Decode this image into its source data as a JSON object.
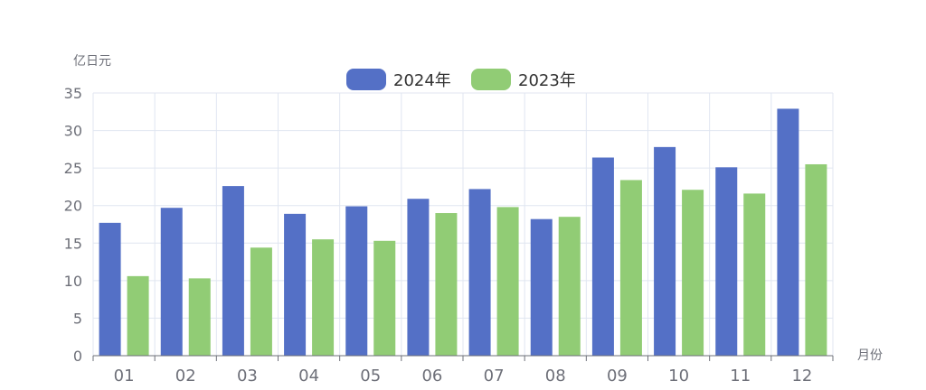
{
  "chart_data": {
    "type": "bar",
    "ylabel": "亿日元",
    "xlabel": "月份",
    "ylim": [
      0,
      35
    ],
    "yticks": [
      0,
      5,
      10,
      15,
      20,
      25,
      30,
      35
    ],
    "categories": [
      "01",
      "02",
      "03",
      "04",
      "05",
      "06",
      "07",
      "08",
      "09",
      "10",
      "11",
      "12"
    ],
    "series": [
      {
        "name": "2024年",
        "color": "#5470c6",
        "values": [
          17.7,
          19.7,
          22.6,
          18.9,
          19.9,
          20.9,
          22.2,
          18.2,
          26.4,
          27.8,
          25.1,
          32.9
        ]
      },
      {
        "name": "2023年",
        "color": "#91cc75",
        "values": [
          10.6,
          10.3,
          14.4,
          15.5,
          15.3,
          19.0,
          19.8,
          18.5,
          23.4,
          22.1,
          21.6,
          25.5
        ]
      }
    ],
    "legend_position": "top-center",
    "grid": true
  }
}
